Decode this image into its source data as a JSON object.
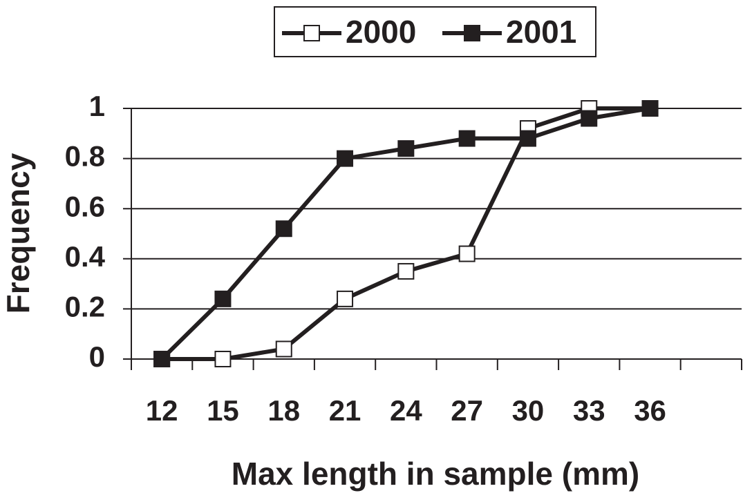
{
  "chart_data": {
    "type": "line",
    "x_label": "Max length in sample (mm)",
    "y_label": "Frequency",
    "categories": [
      "12",
      "15",
      "18",
      "21",
      "24",
      "27",
      "30",
      "33",
      "36",
      null
    ],
    "series": [
      {
        "name": "2000",
        "color": "#ffffff",
        "values": [
          0,
          0,
          0.04,
          0.24,
          0.35,
          0.42,
          0.92,
          1.0,
          1.0,
          null
        ]
      },
      {
        "name": "2001",
        "color": "#231f20",
        "values": [
          0,
          0.24,
          0.52,
          0.8,
          0.84,
          0.88,
          0.88,
          0.96,
          1.0,
          null
        ]
      }
    ],
    "ylim": [
      0,
      1
    ],
    "yticks": [
      0,
      0.2,
      0.4,
      0.6,
      0.8,
      1
    ],
    "grid": true,
    "legend": "top"
  }
}
